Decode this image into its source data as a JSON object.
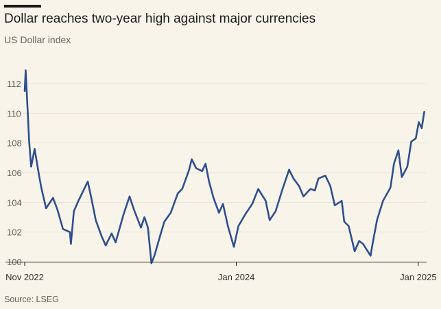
{
  "title": "Dollar reaches two-year high against major currencies",
  "subtitle": "US Dollar index",
  "source": "Source: LSEG",
  "colors": {
    "background": "#f8f4ea",
    "line": "#2e4f8f",
    "grid": "#e9e3d6",
    "axis": "#1a1a1a"
  },
  "chart_data": {
    "type": "line",
    "title": "Dollar reaches two-year high against major currencies",
    "ylabel": "US Dollar index",
    "ylim": [
      100,
      112
    ],
    "yticks": [
      100,
      102,
      104,
      106,
      108,
      110,
      112
    ],
    "xlim": [
      "2022-11-01",
      "2025-01-15"
    ],
    "xticks": [
      {
        "date": "2022-11-01",
        "label": "Nov 2022"
      },
      {
        "date": "2024-01-01",
        "label": "Jan 2024"
      },
      {
        "date": "2025-01-01",
        "label": "Jan 2025"
      }
    ],
    "grid": true,
    "series": [
      {
        "values": [
          [
            "2022-11-01",
            111.5
          ],
          [
            "2022-11-03",
            112.9
          ],
          [
            "2022-11-07",
            110.2
          ],
          [
            "2022-11-10",
            108.1
          ],
          [
            "2022-11-14",
            106.4
          ],
          [
            "2022-11-21",
            107.6
          ],
          [
            "2022-11-30",
            105.8
          ],
          [
            "2022-12-05",
            104.9
          ],
          [
            "2022-12-14",
            103.6
          ],
          [
            "2022-12-28",
            104.3
          ],
          [
            "2023-01-06",
            103.5
          ],
          [
            "2023-01-17",
            102.2
          ],
          [
            "2023-01-31",
            102.0
          ],
          [
            "2023-02-02",
            101.2
          ],
          [
            "2023-02-08",
            103.4
          ],
          [
            "2023-02-17",
            104.1
          ],
          [
            "2023-03-08",
            105.4
          ],
          [
            "2023-03-15",
            104.3
          ],
          [
            "2023-03-24",
            102.8
          ],
          [
            "2023-04-05",
            101.7
          ],
          [
            "2023-04-13",
            101.1
          ],
          [
            "2023-04-25",
            101.9
          ],
          [
            "2023-05-03",
            101.3
          ],
          [
            "2023-05-19",
            103.2
          ],
          [
            "2023-05-31",
            104.4
          ],
          [
            "2023-06-09",
            103.5
          ],
          [
            "2023-06-23",
            102.3
          ],
          [
            "2023-06-30",
            103.0
          ],
          [
            "2023-07-07",
            102.3
          ],
          [
            "2023-07-14",
            99.9
          ],
          [
            "2023-07-20",
            100.4
          ],
          [
            "2023-08-01",
            101.8
          ],
          [
            "2023-08-09",
            102.7
          ],
          [
            "2023-08-22",
            103.3
          ],
          [
            "2023-09-05",
            104.6
          ],
          [
            "2023-09-14",
            104.9
          ],
          [
            "2023-09-28",
            106.2
          ],
          [
            "2023-10-03",
            106.9
          ],
          [
            "2023-10-12",
            106.3
          ],
          [
            "2023-10-24",
            106.1
          ],
          [
            "2023-10-31",
            106.6
          ],
          [
            "2023-11-07",
            105.4
          ],
          [
            "2023-11-16",
            104.3
          ],
          [
            "2023-11-27",
            103.3
          ],
          [
            "2023-12-05",
            103.9
          ],
          [
            "2023-12-15",
            102.4
          ],
          [
            "2023-12-27",
            101.0
          ],
          [
            "2024-01-05",
            102.4
          ],
          [
            "2024-01-19",
            103.2
          ],
          [
            "2024-02-02",
            103.9
          ],
          [
            "2024-02-14",
            104.9
          ],
          [
            "2024-02-29",
            104.1
          ],
          [
            "2024-03-08",
            102.8
          ],
          [
            "2024-03-20",
            103.4
          ],
          [
            "2024-04-02",
            104.8
          ],
          [
            "2024-04-16",
            106.2
          ],
          [
            "2024-04-25",
            105.6
          ],
          [
            "2024-05-06",
            105.1
          ],
          [
            "2024-05-15",
            104.4
          ],
          [
            "2024-05-29",
            104.9
          ],
          [
            "2024-06-07",
            104.8
          ],
          [
            "2024-06-14",
            105.6
          ],
          [
            "2024-06-28",
            105.8
          ],
          [
            "2024-07-08",
            105.1
          ],
          [
            "2024-07-17",
            103.8
          ],
          [
            "2024-07-31",
            104.1
          ],
          [
            "2024-08-05",
            102.7
          ],
          [
            "2024-08-14",
            102.4
          ],
          [
            "2024-08-26",
            100.7
          ],
          [
            "2024-09-04",
            101.4
          ],
          [
            "2024-09-12",
            101.2
          ],
          [
            "2024-09-27",
            100.4
          ],
          [
            "2024-10-01",
            101.2
          ],
          [
            "2024-10-10",
            102.8
          ],
          [
            "2024-10-22",
            104.1
          ],
          [
            "2024-11-06",
            105.0
          ],
          [
            "2024-11-13",
            106.6
          ],
          [
            "2024-11-22",
            107.5
          ],
          [
            "2024-11-29",
            105.7
          ],
          [
            "2024-12-10",
            106.4
          ],
          [
            "2024-12-18",
            108.1
          ],
          [
            "2024-12-27",
            108.3
          ],
          [
            "2025-01-02",
            109.4
          ],
          [
            "2025-01-08",
            109.0
          ],
          [
            "2025-01-13",
            110.1
          ]
        ]
      }
    ]
  }
}
